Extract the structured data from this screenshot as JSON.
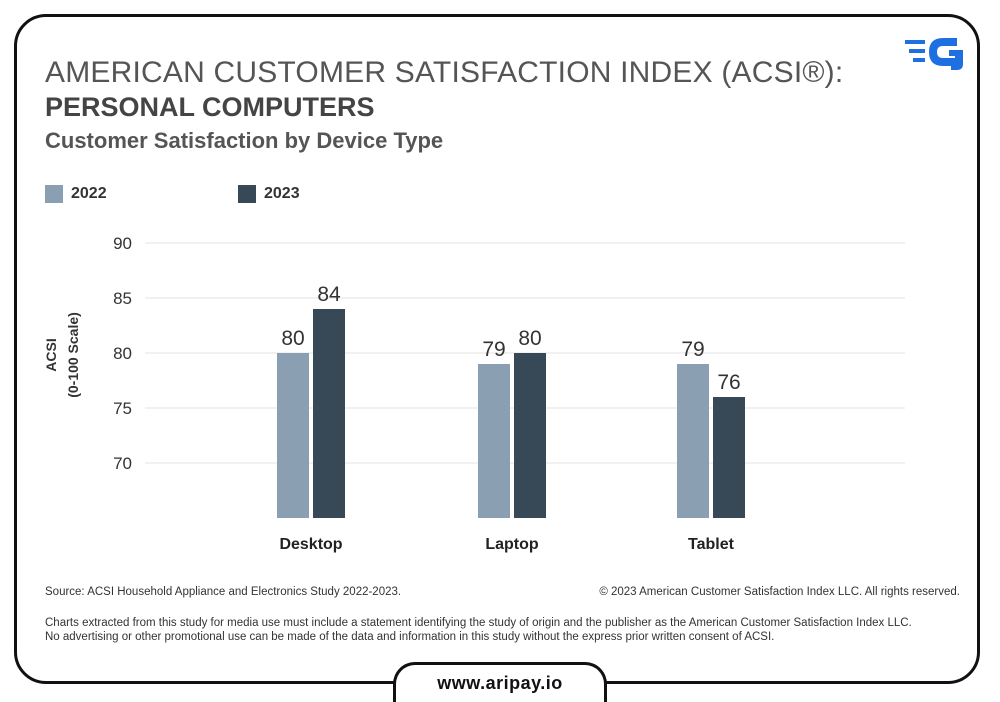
{
  "header": {
    "title_line1": "AMERICAN CUSTOMER SATISFACTION INDEX (ACSI®):",
    "title_line2": "PERSONAL COMPUTERS",
    "subtitle": "Customer Satisfaction by Device Type"
  },
  "legend": [
    {
      "label": "2022",
      "color": "#8a9fb1"
    },
    {
      "label": "2023",
      "color": "#374857"
    }
  ],
  "chart_data": {
    "type": "bar",
    "title": "Customer Satisfaction by Device Type",
    "categories": [
      "Desktop",
      "Laptop",
      "Tablet"
    ],
    "series": [
      {
        "name": "2022",
        "values": [
          80,
          79,
          79
        ],
        "color": "#8a9fb1"
      },
      {
        "name": "2023",
        "values": [
          84,
          80,
          76
        ],
        "color": "#374857"
      }
    ],
    "ylabel": "ACSI",
    "ylabel_sub": "(0-100 Scale)",
    "ylim": [
      65,
      90
    ],
    "yticks": [
      70,
      75,
      80,
      85,
      90
    ],
    "grid": true,
    "legend_position": "top-left"
  },
  "footer": {
    "source": "Source: ACSI Household Appliance and Electronics Study 2022-2023.",
    "copyright": "© 2023 American Customer Satisfaction Index LLC. All rights reserved.",
    "disclaimer_line1": "Charts extracted from this study for media use must include a statement identifying the study of origin and the publisher as the American Customer Satisfaction Index LLC.",
    "disclaimer_line2": "No advertising or other promotional use can be made of the data and information in this study without the express prior written consent of ACSI."
  },
  "website": {
    "url": "www.aripay.io"
  },
  "logo": {
    "icon": "aripay-logo-icon",
    "color": "#1e6fe0"
  }
}
